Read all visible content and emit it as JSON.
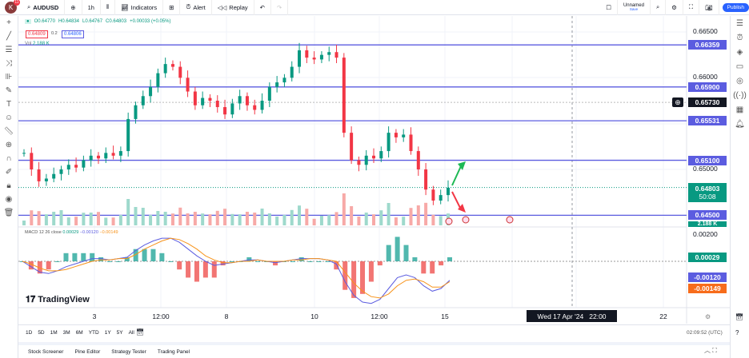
{
  "toolbar": {
    "badge": "K",
    "badge_count": "11",
    "symbol": "AUDUSD",
    "interval": "1h",
    "indicators": "Indicators",
    "alert": "Alert",
    "replay": "Replay",
    "layout_name": "Unnamed",
    "save": "Save",
    "publish": "Publish"
  },
  "legend": {
    "o": "O0.64770",
    "h": "H0.64834",
    "l": "L0.64767",
    "c": "C0.64803",
    "change": "+0.00033 (+0.05%)",
    "sell": "0.64809",
    "spread": "0.2",
    "buy": "0.64806",
    "vol": "Vol",
    "vol_value": "2.188 K",
    "macd": "MACD 12 26 close",
    "macd_v": "0.00029",
    "macd_s": "−0.00120",
    "macd_h": "−0.00149"
  },
  "price_ticks": [
    {
      "v": 0.665,
      "t": "0.66500"
    },
    {
      "v": 0.66,
      "t": "0.66000"
    },
    {
      "v": 0.65,
      "t": "0.65000"
    }
  ],
  "price_labels": [
    {
      "v": 0.66359,
      "t": "0.66359",
      "c": "#5b5ce0"
    },
    {
      "v": 0.659,
      "t": "0.65900",
      "c": "#5b5ce0"
    },
    {
      "v": 0.65731,
      "t": "0.65730",
      "c": "#131722"
    },
    {
      "v": 0.65531,
      "t": "0.65531",
      "c": "#5b5ce0"
    },
    {
      "v": 0.651,
      "t": "0.65100",
      "c": "#5b5ce0"
    },
    {
      "v": 0.64803,
      "t": "0.64803",
      "c": "#089981",
      "sub": "50:08"
    },
    {
      "v": 0.645,
      "t": "0.64500",
      "c": "#5b5ce0"
    }
  ],
  "macd_axis": {
    "tick": "0.00200",
    "v": "0.00029",
    "s": "-0.00120",
    "h": "-0.00149"
  },
  "vol_label": "2.188 K",
  "time_labels": [
    {
      "x": 118,
      "t": "3"
    },
    {
      "x": 201,
      "t": "12:00"
    },
    {
      "x": 283,
      "t": "8"
    },
    {
      "x": 393,
      "t": "10"
    },
    {
      "x": 474,
      "t": "12:00"
    },
    {
      "x": 556,
      "t": "15"
    },
    {
      "x": 829,
      "t": "22"
    }
  ],
  "crosshair_time": "Wed 17 Apr '24   22:00",
  "ranges": [
    "1D",
    "5D",
    "1M",
    "3M",
    "6M",
    "YTD",
    "1Y",
    "5Y",
    "All"
  ],
  "clock": "02:09:52 (UTC)",
  "bottom_tabs": [
    "Stock Screener",
    "Pine Editor",
    "Strategy Tester",
    "Trading Panel"
  ],
  "brand": "TradingView",
  "chart_data": {
    "type": "candlestick",
    "closes": [
      0.6518,
      0.65,
      0.6487,
      0.649,
      0.6495,
      0.65,
      0.6505,
      0.6502,
      0.651,
      0.6515,
      0.6512,
      0.6518,
      0.6515,
      0.652,
      0.6555,
      0.657,
      0.658,
      0.659,
      0.6605,
      0.6615,
      0.6612,
      0.66,
      0.6585,
      0.657,
      0.6578,
      0.6575,
      0.6568,
      0.656,
      0.6572,
      0.658,
      0.657,
      0.6565,
      0.6575,
      0.659,
      0.6595,
      0.66,
      0.6612,
      0.663,
      0.6622,
      0.662,
      0.6625,
      0.6628,
      0.6622,
      0.654,
      0.651,
      0.6505,
      0.6515,
      0.6512,
      0.652,
      0.654,
      0.6535,
      0.6538,
      0.652,
      0.65,
      0.6478,
      0.6466,
      0.6472,
      0.648
    ],
    "macd_line": [
      0,
      -0.0004,
      -0.0008,
      -0.0009,
      -0.0007,
      -0.0004,
      -0.0002,
      0,
      0.0002,
      0.0002,
      0.0001,
      0.0002,
      0.0003,
      0.0008,
      0.0012,
      0.0015,
      0.0017,
      0.0017,
      0.0014,
      0.0009,
      0.0004,
      0,
      -0.0003,
      -0.0002,
      -0.0001,
      0,
      0.0001,
      0.0001,
      0,
      -0.0001,
      0,
      0.0001,
      0.0002,
      0.0002,
      0.0002,
      0.0001,
      -0.0002,
      -0.0015,
      -0.0025,
      -0.003,
      -0.0031,
      -0.0028,
      -0.002,
      -0.0012,
      -0.001,
      -0.0012,
      -0.0018,
      -0.0022,
      -0.002,
      -0.0014
    ],
    "signal_line": [
      0,
      -0.0002,
      -0.0005,
      -0.0007,
      -0.0007,
      -0.0006,
      -0.0004,
      -0.0002,
      0,
      0.0001,
      0.0001,
      0.0002,
      0.0002,
      0.0005,
      0.0009,
      0.0012,
      0.0015,
      0.0017,
      0.0016,
      0.0013,
      0.0009,
      0.0004,
      0.0001,
      -0.0001,
      -0.0001,
      0,
      0,
      0.0001,
      0,
      0,
      0,
      0.0001,
      0.0001,
      0.0002,
      0.0002,
      0.0001,
      0,
      -0.0008,
      -0.0016,
      -0.0022,
      -0.0026,
      -0.0027,
      -0.0024,
      -0.0018,
      -0.0014,
      -0.0013,
      -0.0015,
      -0.0019,
      -0.0019,
      -0.0015
    ]
  }
}
